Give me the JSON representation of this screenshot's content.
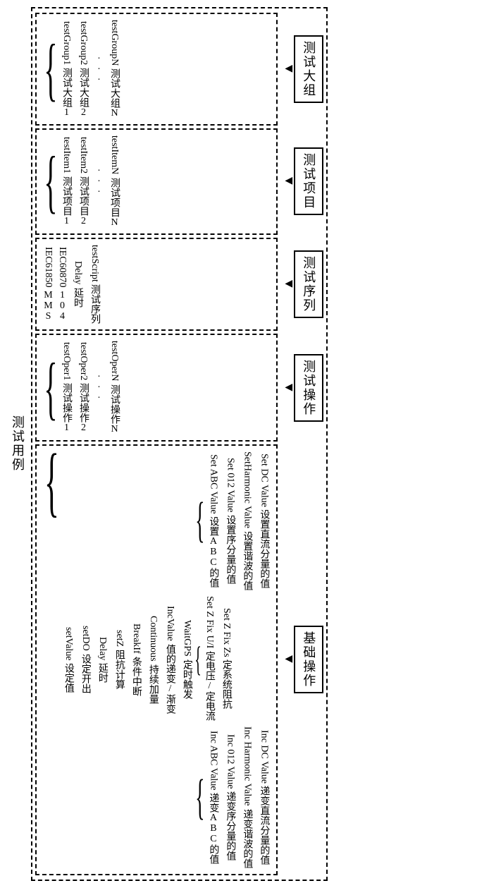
{
  "root_label": "测试用例",
  "sections": [
    {
      "label": "测试大组",
      "items": [
        {
          "en": "testGroup1",
          "cn": "测试大组1"
        },
        {
          "en": "testGroup2",
          "cn": "测试大组2"
        },
        {
          "dots": true
        },
        {
          "en": "testGroupN",
          "cn": "测试大组N"
        }
      ]
    },
    {
      "label": "测试项目",
      "items": [
        {
          "en": "testItem1",
          "cn": "测试项目1"
        },
        {
          "en": "testItem2",
          "cn": "测试项目2"
        },
        {
          "dots": true
        },
        {
          "en": "testItemN",
          "cn": "测试项目N"
        }
      ]
    },
    {
      "label": "测试序列",
      "items_nobrace": [
        {
          "en": "IEC61850",
          "cn": "MMS"
        },
        {
          "en": "IEC60870",
          "cn": "104"
        },
        {
          "en": "Delay",
          "cn": "延时"
        },
        {
          "en": "testScript",
          "cn": "测试序列"
        }
      ]
    },
    {
      "label": "测试操作",
      "items": [
        {
          "en": "testOper1",
          "cn": "测试操作1"
        },
        {
          "en": "testOper2",
          "cn": "测试操作2"
        },
        {
          "dots": true
        },
        {
          "en": "testOperN",
          "cn": "测试操作N"
        }
      ]
    },
    {
      "label": "基础操作",
      "base_ops": [
        {
          "en": "setValue",
          "cn": "设定值"
        },
        {
          "en": "setDO",
          "cn": "设定开出"
        },
        {
          "en": "Delay",
          "cn": "延时"
        },
        {
          "en": "setZ",
          "cn": "阻抗计算"
        },
        {
          "en": "BreakIf",
          "cn": "条件中断"
        },
        {
          "en": "Continuous",
          "cn": "持续加量"
        },
        {
          "en": "IncValue",
          "cn": "值的递变/渐变"
        },
        {
          "en": "WaitGPS",
          "cn": "定时触发"
        }
      ],
      "sub1": {
        "src_idx": 0,
        "items": [
          {
            "en": "Set ABC Value",
            "cn": "设置ABC的值"
          },
          {
            "en": "Set 012 Value",
            "cn": "设置序分量的值"
          },
          {
            "en": "SetHarmonic Value",
            "cn": "设置谐波的值"
          },
          {
            "en": "Set DC Value",
            "cn": "设置直流分量的值"
          }
        ]
      },
      "sub2": {
        "src_idx": 3,
        "items": [
          {
            "en": "Set Z Fix U/I",
            "cn": "定电压/定电流"
          },
          {
            "en": "Set Z Fix Zs",
            "cn": "定系统阻抗"
          }
        ]
      },
      "sub3": {
        "src_idx": 6,
        "items": [
          {
            "en": "Inc ABC Value",
            "cn": "递变ABC的值"
          },
          {
            "en": "Inc 012 Value",
            "cn": "递变序分量的值"
          },
          {
            "en": "Inc Harmonic Value",
            "cn": "递变谐波的值"
          },
          {
            "en": "Inc DC Value",
            "cn": "递变直流分量的值"
          }
        ]
      }
    }
  ],
  "colors": {
    "border": "#000000",
    "bg": "#ffffff",
    "text": "#000000"
  }
}
